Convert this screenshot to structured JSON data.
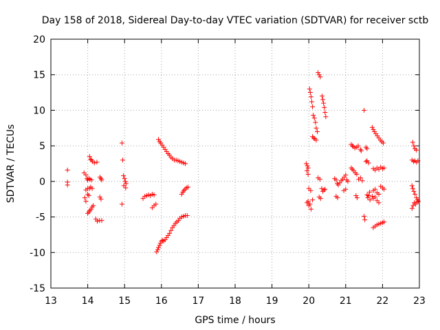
{
  "chart_data": {
    "type": "scatter",
    "title": "Day 158 of 2018, Sidereal Day-to-day VTEC variation (SDTVAR) for receiver sctb",
    "xlabel": "GPS time / hours",
    "ylabel": "SDTVAR / TECUs",
    "xlim": [
      13,
      23
    ],
    "ylim": [
      -15,
      20
    ],
    "xticks": [
      13,
      14,
      15,
      16,
      17,
      18,
      19,
      20,
      21,
      22,
      23
    ],
    "yticks": [
      -15,
      -10,
      -5,
      0,
      5,
      10,
      15,
      20
    ],
    "grid": true,
    "marker": "+",
    "colors": {
      "points": "#ff0000",
      "grid": "#a0a0a0",
      "axis": "#000000"
    },
    "series": [
      {
        "name": "sctb",
        "points": [
          [
            13.45,
            1.6
          ],
          [
            13.45,
            -0.1
          ],
          [
            13.45,
            -0.5
          ],
          [
            13.9,
            1.2
          ],
          [
            13.95,
            0.9
          ],
          [
            13.95,
            -1.2
          ],
          [
            13.92,
            -2.3
          ],
          [
            13.95,
            -2.8
          ],
          [
            13.98,
            0.4
          ],
          [
            14.0,
            0.2
          ],
          [
            14.03,
            0.4
          ],
          [
            14.06,
            0.3
          ],
          [
            14.1,
            0.2
          ],
          [
            14.0,
            -1.0
          ],
          [
            14.05,
            -1.0
          ],
          [
            14.08,
            -0.8
          ],
          [
            14.12,
            -1.0
          ],
          [
            14.0,
            -1.8
          ],
          [
            14.03,
            -2.0
          ],
          [
            14.05,
            3.5
          ],
          [
            14.08,
            3.1
          ],
          [
            14.1,
            3.0
          ],
          [
            14.13,
            2.8
          ],
          [
            14.18,
            2.6
          ],
          [
            14.25,
            2.7
          ],
          [
            14.0,
            -4.5
          ],
          [
            14.03,
            -4.3
          ],
          [
            14.06,
            -4.1
          ],
          [
            14.09,
            -3.9
          ],
          [
            14.12,
            -3.6
          ],
          [
            14.15,
            -3.4
          ],
          [
            14.22,
            -5.3
          ],
          [
            14.26,
            -5.6
          ],
          [
            14.32,
            -5.5
          ],
          [
            14.38,
            -5.5
          ],
          [
            14.33,
            0.6
          ],
          [
            14.36,
            0.4
          ],
          [
            14.38,
            0.2
          ],
          [
            14.33,
            -2.2
          ],
          [
            14.36,
            -2.5
          ],
          [
            14.93,
            5.4
          ],
          [
            14.95,
            3.0
          ],
          [
            14.93,
            -3.2
          ],
          [
            14.97,
            0.8
          ],
          [
            15.0,
            0.4
          ],
          [
            15.02,
            0.0
          ],
          [
            15.04,
            -0.3
          ],
          [
            14.98,
            -0.6
          ],
          [
            15.03,
            -0.9
          ],
          [
            15.5,
            -2.4
          ],
          [
            15.55,
            -2.1
          ],
          [
            15.6,
            -2.0
          ],
          [
            15.65,
            -1.9
          ],
          [
            15.7,
            -2.0
          ],
          [
            15.75,
            -1.8
          ],
          [
            15.8,
            -1.9
          ],
          [
            15.75,
            -3.7
          ],
          [
            15.8,
            -3.4
          ],
          [
            15.85,
            -3.2
          ],
          [
            15.87,
            -9.9
          ],
          [
            15.9,
            -9.6
          ],
          [
            15.92,
            -9.3
          ],
          [
            15.95,
            -9.0
          ],
          [
            15.97,
            -8.7
          ],
          [
            16.0,
            -8.4
          ],
          [
            16.03,
            -8.3
          ],
          [
            16.06,
            -8.4
          ],
          [
            16.1,
            -8.2
          ],
          [
            16.14,
            -7.9
          ],
          [
            16.18,
            -7.6
          ],
          [
            16.22,
            -7.3
          ],
          [
            16.26,
            -6.9
          ],
          [
            16.3,
            -6.5
          ],
          [
            16.34,
            -6.2
          ],
          [
            16.38,
            -5.9
          ],
          [
            16.42,
            -5.7
          ],
          [
            16.46,
            -5.5
          ],
          [
            16.5,
            -5.2
          ],
          [
            16.55,
            -5.0
          ],
          [
            16.6,
            -4.9
          ],
          [
            16.65,
            -4.8
          ],
          [
            16.7,
            -4.8
          ],
          [
            15.92,
            5.9
          ],
          [
            15.95,
            5.6
          ],
          [
            15.98,
            5.4
          ],
          [
            16.02,
            5.1
          ],
          [
            16.06,
            4.8
          ],
          [
            16.1,
            4.5
          ],
          [
            16.14,
            4.2
          ],
          [
            16.18,
            3.9
          ],
          [
            16.22,
            3.7
          ],
          [
            16.26,
            3.4
          ],
          [
            16.3,
            3.2
          ],
          [
            16.35,
            3.0
          ],
          [
            16.4,
            3.0
          ],
          [
            16.45,
            2.9
          ],
          [
            16.5,
            2.8
          ],
          [
            16.55,
            2.7
          ],
          [
            16.6,
            2.6
          ],
          [
            16.65,
            2.5
          ],
          [
            16.55,
            -1.8
          ],
          [
            16.58,
            -1.5
          ],
          [
            16.61,
            -1.3
          ],
          [
            16.64,
            -1.1
          ],
          [
            16.68,
            -0.9
          ],
          [
            16.72,
            -0.8
          ],
          [
            19.93,
            2.5
          ],
          [
            19.96,
            2.2
          ],
          [
            19.98,
            1.9
          ],
          [
            19.95,
            1.5
          ],
          [
            19.98,
            1.0
          ],
          [
            19.95,
            -3.0
          ],
          [
            19.98,
            -2.8
          ],
          [
            20.0,
            -3.4
          ],
          [
            20.03,
            -3.2
          ],
          [
            20.06,
            -3.9
          ],
          [
            20.1,
            -2.6
          ],
          [
            20.0,
            -1.0
          ],
          [
            20.05,
            -1.3
          ],
          [
            20.02,
            13.0
          ],
          [
            20.04,
            12.5
          ],
          [
            20.06,
            11.9
          ],
          [
            20.08,
            11.2
          ],
          [
            20.1,
            10.5
          ],
          [
            20.12,
            9.3
          ],
          [
            20.15,
            8.9
          ],
          [
            20.18,
            8.3
          ],
          [
            20.1,
            6.3
          ],
          [
            20.13,
            6.1
          ],
          [
            20.16,
            6.0
          ],
          [
            20.2,
            5.8
          ],
          [
            20.2,
            7.5
          ],
          [
            20.23,
            7.0
          ],
          [
            20.25,
            15.3
          ],
          [
            20.28,
            15.0
          ],
          [
            20.31,
            14.7
          ],
          [
            20.36,
            12.0
          ],
          [
            20.38,
            11.5
          ],
          [
            20.4,
            11.0
          ],
          [
            20.42,
            10.4
          ],
          [
            20.44,
            9.7
          ],
          [
            20.46,
            9.1
          ],
          [
            20.25,
            0.5
          ],
          [
            20.3,
            0.3
          ],
          [
            20.35,
            -1.0
          ],
          [
            20.38,
            -1.4
          ],
          [
            20.41,
            -1.2
          ],
          [
            20.44,
            -1.1
          ],
          [
            20.28,
            -2.2
          ],
          [
            20.32,
            -2.4
          ],
          [
            20.7,
            0.4
          ],
          [
            20.74,
            0.2
          ],
          [
            20.77,
            -0.3
          ],
          [
            20.8,
            -0.5
          ],
          [
            20.84,
            -0.2
          ],
          [
            20.88,
            0.1
          ],
          [
            20.92,
            0.3
          ],
          [
            20.96,
            0.6
          ],
          [
            21.0,
            0.9
          ],
          [
            21.03,
            0.2
          ],
          [
            21.06,
            0.0
          ],
          [
            20.74,
            -2.1
          ],
          [
            20.78,
            -2.3
          ],
          [
            20.95,
            -1.3
          ],
          [
            21.0,
            -1.1
          ],
          [
            21.15,
            5.2
          ],
          [
            21.18,
            5.0
          ],
          [
            21.21,
            4.9
          ],
          [
            21.25,
            4.7
          ],
          [
            21.3,
            4.8
          ],
          [
            21.34,
            5.0
          ],
          [
            21.4,
            4.5
          ],
          [
            21.42,
            4.3
          ],
          [
            21.15,
            1.9
          ],
          [
            21.18,
            1.7
          ],
          [
            21.22,
            1.5
          ],
          [
            21.26,
            1.2
          ],
          [
            21.3,
            1.0
          ],
          [
            21.28,
            -2.0
          ],
          [
            21.31,
            -2.3
          ],
          [
            21.35,
            0.3
          ],
          [
            21.4,
            0.5
          ],
          [
            21.45,
            0.1
          ],
          [
            21.5,
            10.0
          ],
          [
            21.5,
            -4.9
          ],
          [
            21.52,
            -5.4
          ],
          [
            21.55,
            2.8
          ],
          [
            21.58,
            2.9
          ],
          [
            21.62,
            2.6
          ],
          [
            21.58,
            -1.9
          ],
          [
            21.6,
            -2.3
          ],
          [
            21.62,
            -2.0
          ],
          [
            21.65,
            -1.5
          ],
          [
            21.66,
            -2.6
          ],
          [
            21.55,
            4.8
          ],
          [
            21.58,
            4.6
          ],
          [
            21.72,
            7.6
          ],
          [
            21.75,
            7.3
          ],
          [
            21.78,
            7.0
          ],
          [
            21.82,
            6.7
          ],
          [
            21.86,
            6.4
          ],
          [
            21.9,
            6.1
          ],
          [
            21.94,
            5.8
          ],
          [
            21.98,
            5.6
          ],
          [
            22.02,
            5.4
          ],
          [
            21.75,
            1.8
          ],
          [
            21.8,
            1.6
          ],
          [
            21.85,
            1.9
          ],
          [
            21.9,
            1.7
          ],
          [
            21.95,
            2.0
          ],
          [
            22.0,
            1.8
          ],
          [
            22.04,
            1.9
          ],
          [
            21.75,
            -1.3
          ],
          [
            21.8,
            -1.1
          ],
          [
            21.85,
            -1.6
          ],
          [
            21.9,
            -1.8
          ],
          [
            21.95,
            -0.7
          ],
          [
            22.0,
            -0.9
          ],
          [
            22.04,
            -1.1
          ],
          [
            21.72,
            -2.1
          ],
          [
            21.75,
            -2.4
          ],
          [
            21.8,
            -2.2
          ],
          [
            21.85,
            -2.7
          ],
          [
            21.9,
            -3.0
          ],
          [
            21.75,
            -6.5
          ],
          [
            21.8,
            -6.3
          ],
          [
            21.85,
            -6.1
          ],
          [
            21.9,
            -6.0
          ],
          [
            21.95,
            -5.9
          ],
          [
            22.0,
            -5.8
          ],
          [
            22.04,
            -5.7
          ],
          [
            22.82,
            5.5
          ],
          [
            22.85,
            5.0
          ],
          [
            22.88,
            4.6
          ],
          [
            22.92,
            4.4
          ],
          [
            22.8,
            3.0
          ],
          [
            22.84,
            2.8
          ],
          [
            22.88,
            2.9
          ],
          [
            22.92,
            2.7
          ],
          [
            22.96,
            2.9
          ],
          [
            22.8,
            -0.6
          ],
          [
            22.82,
            -1.0
          ],
          [
            22.85,
            -1.4
          ],
          [
            22.88,
            -1.8
          ],
          [
            22.92,
            -2.3
          ],
          [
            22.95,
            -2.6
          ],
          [
            22.8,
            -3.8
          ],
          [
            22.83,
            -3.4
          ],
          [
            22.86,
            -3.0
          ],
          [
            22.9,
            -3.2
          ],
          [
            22.94,
            -2.9
          ],
          [
            22.97,
            -2.8
          ]
        ]
      }
    ]
  }
}
